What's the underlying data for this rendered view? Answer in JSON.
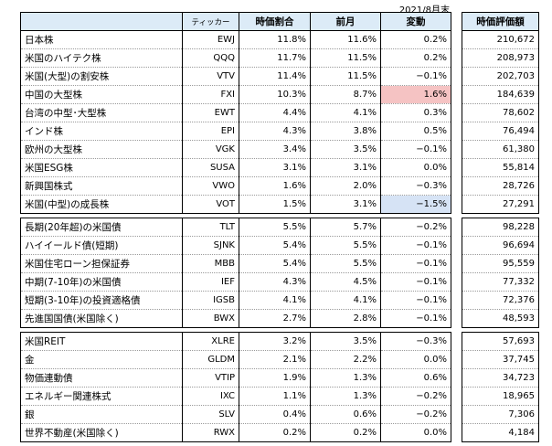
{
  "date_label": "2021/8月末",
  "columns": {
    "name": "",
    "ticker": "ティッカー",
    "market_share": "時価割合",
    "prev_month": "前月",
    "change": "変動",
    "market_value": "時価評価額"
  },
  "groups": [
    [
      {
        "name": "日本株",
        "ticker": "EWJ",
        "share": "11.8%",
        "prev": "11.6%",
        "change": "0.2%",
        "value": "210,672"
      },
      {
        "name": "米国のハイテク株",
        "ticker": "QQQ",
        "share": "11.7%",
        "prev": "11.5%",
        "change": "0.2%",
        "value": "208,973"
      },
      {
        "name": "米国(大型)の割安株",
        "ticker": "VTV",
        "share": "11.4%",
        "prev": "11.5%",
        "change": "−0.1%",
        "value": "202,703"
      },
      {
        "name": "中国の大型株",
        "ticker": "FXI",
        "share": "10.3%",
        "prev": "8.7%",
        "change": "1.6%",
        "value": "184,639",
        "highlight": "red"
      },
      {
        "name": "台湾の中型･大型株",
        "ticker": "EWT",
        "share": "4.4%",
        "prev": "4.1%",
        "change": "0.3%",
        "value": "78,602"
      },
      {
        "name": "インド株",
        "ticker": "EPI",
        "share": "4.3%",
        "prev": "3.8%",
        "change": "0.5%",
        "value": "76,494"
      },
      {
        "name": "欧州の大型株",
        "ticker": "VGK",
        "share": "3.4%",
        "prev": "3.5%",
        "change": "−0.1%",
        "value": "61,380"
      },
      {
        "name": "米国ESG株",
        "ticker": "SUSA",
        "share": "3.1%",
        "prev": "3.1%",
        "change": "0.0%",
        "value": "55,814"
      },
      {
        "name": "新興国株式",
        "ticker": "VWO",
        "share": "1.6%",
        "prev": "2.0%",
        "change": "−0.3%",
        "value": "28,726"
      },
      {
        "name": "米国(中型)の成長株",
        "ticker": "VOT",
        "share": "1.5%",
        "prev": "3.1%",
        "change": "−1.5%",
        "value": "27,291",
        "highlight": "blue"
      }
    ],
    [
      {
        "name": "長期(20年超)の米国債",
        "ticker": "TLT",
        "share": "5.5%",
        "prev": "5.7%",
        "change": "−0.2%",
        "value": "98,228"
      },
      {
        "name": "ハイイールド債(短期)",
        "ticker": "SJNK",
        "share": "5.4%",
        "prev": "5.5%",
        "change": "−0.1%",
        "value": "96,694"
      },
      {
        "name": "米国住宅ローン担保証券",
        "ticker": "MBB",
        "share": "5.4%",
        "prev": "5.5%",
        "change": "−0.1%",
        "value": "95,559"
      },
      {
        "name": "中期(7-10年)の米国債",
        "ticker": "IEF",
        "share": "4.3%",
        "prev": "4.5%",
        "change": "−0.1%",
        "value": "77,332"
      },
      {
        "name": "短期(3-10年)の投資適格債",
        "ticker": "IGSB",
        "share": "4.1%",
        "prev": "4.1%",
        "change": "−0.1%",
        "value": "72,376"
      },
      {
        "name": "先進国国債(米国除く)",
        "ticker": "BWX",
        "share": "2.7%",
        "prev": "2.8%",
        "change": "−0.1%",
        "value": "48,593"
      }
    ],
    [
      {
        "name": "米国REIT",
        "ticker": "XLRE",
        "share": "3.2%",
        "prev": "3.5%",
        "change": "−0.3%",
        "value": "57,693"
      },
      {
        "name": "金",
        "ticker": "GLDM",
        "share": "2.1%",
        "prev": "2.2%",
        "change": "0.0%",
        "value": "37,745"
      },
      {
        "name": "物価連動債",
        "ticker": "VTIP",
        "share": "1.9%",
        "prev": "1.3%",
        "change": "0.6%",
        "value": "34,723"
      },
      {
        "name": "エネルギー関連株式",
        "ticker": "IXC",
        "share": "1.1%",
        "prev": "1.3%",
        "change": "−0.2%",
        "value": "18,965"
      },
      {
        "name": "銀",
        "ticker": "SLV",
        "share": "0.4%",
        "prev": "0.6%",
        "change": "−0.2%",
        "value": "7,306"
      },
      {
        "name": "世界不動産(米国除く)",
        "ticker": "RWX",
        "share": "0.2%",
        "prev": "0.2%",
        "change": "0.0%",
        "value": "4,184"
      }
    ]
  ],
  "colors": {
    "header_bg": "#dcebf7",
    "highlight_red": "#f5c3c3",
    "highlight_blue": "#d6e3f5"
  }
}
